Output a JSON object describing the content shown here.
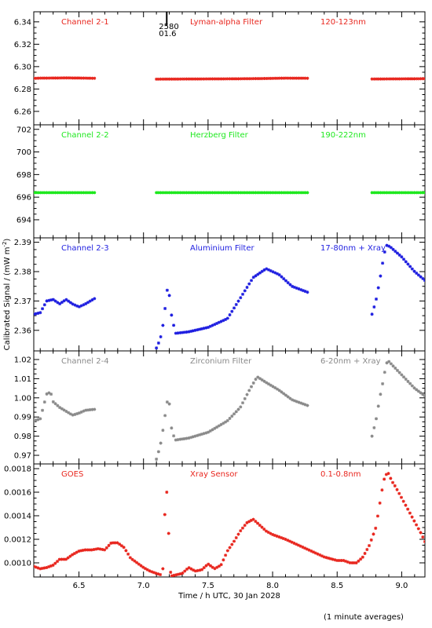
{
  "chart_data": {
    "type": "scatter",
    "xlabel": "Time / h UTC, 30 Jan 2028",
    "ylabel_main": "Calibrated Signal / (mW m",
    "ylabel_sup": "-2",
    "ylabel_end": ")",
    "xlim": [
      6.15,
      9.18
    ],
    "xticks": [
      6.5,
      7.0,
      7.5,
      8.0,
      8.5,
      9.0
    ],
    "xtick_labels": [
      "6.5",
      "7.0",
      "7.5",
      "8.0",
      "8.5",
      "9.0"
    ],
    "footnote": "(1 minute averages)",
    "annotation": {
      "x": 7.18,
      "lines": [
        "2580",
        "01.6"
      ]
    },
    "panels": [
      {
        "channel": "Channel 2-1",
        "filter": "Lyman-alpha Filter",
        "band": "120-123nm",
        "color": "#e8261e",
        "ylim": [
          6.248,
          6.349
        ],
        "yticks": [
          6.26,
          6.28,
          6.3,
          6.32,
          6.34
        ],
        "ytick_labels": [
          "6.26",
          "6.28",
          "6.30",
          "6.32",
          "6.34"
        ],
        "segments": [
          {
            "t": [
              6.15,
              6.2,
              6.3,
              6.4,
              6.5,
              6.6,
              6.62
            ],
            "v": [
              6.2895,
              6.2897,
              6.2898,
              6.2899,
              6.2898,
              6.2896,
              6.2896
            ]
          },
          {
            "t": [
              7.1,
              7.3,
              7.5,
              7.7,
              7.9,
              8.1,
              8.27
            ],
            "v": [
              6.2888,
              6.2889,
              6.289,
              6.2891,
              6.2893,
              6.2897,
              6.2896
            ]
          },
          {
            "t": [
              8.77,
              8.9,
              9.05,
              9.18
            ],
            "v": [
              6.2889,
              6.289,
              6.2891,
              6.2892
            ]
          }
        ]
      },
      {
        "channel": "Channel 2-2",
        "filter": "Herzberg Filter",
        "band": "190-222nm",
        "color": "#1ee81e",
        "ylim": [
          692.4,
          702.4
        ],
        "yticks": [
          694,
          696,
          698,
          700,
          702
        ],
        "ytick_labels": [
          "694",
          "696",
          "698",
          "700",
          "702"
        ],
        "segments": [
          {
            "t": [
              6.15,
              6.4,
              6.62
            ],
            "v": [
              696.4,
              696.4,
              696.4
            ]
          },
          {
            "t": [
              7.1,
              7.7,
              8.27
            ],
            "v": [
              696.4,
              696.4,
              696.4
            ]
          },
          {
            "t": [
              8.77,
              9.0,
              9.18
            ],
            "v": [
              696.4,
              696.4,
              696.4
            ]
          }
        ]
      },
      {
        "channel": "Channel 2-3",
        "filter": "Aluminium Filter",
        "band": "17-80nm + Xray",
        "color": "#1e1ee0",
        "ylim": [
          2.353,
          2.3915
        ],
        "yticks": [
          2.36,
          2.37,
          2.38,
          2.39
        ],
        "ytick_labels": [
          "2.36",
          "2.37",
          "2.38",
          "2.39"
        ],
        "segments": [
          {
            "t": [
              6.15,
              6.2,
              6.25,
              6.3,
              6.35,
              6.4,
              6.45,
              6.5,
              6.55,
              6.62
            ],
            "v": [
              2.3655,
              2.366,
              2.37,
              2.3705,
              2.369,
              2.3705,
              2.369,
              2.368,
              2.369,
              2.3708
            ]
          },
          {
            "t": [
              7.1,
              7.13,
              7.16,
              7.18,
              7.2,
              7.22,
              7.25,
              7.35,
              7.5,
              7.65,
              7.75,
              7.85,
              7.95,
              8.05,
              8.15,
              8.27
            ],
            "v": [
              2.354,
              2.357,
              2.364,
              2.374,
              2.372,
              2.364,
              2.359,
              2.3595,
              2.361,
              2.364,
              2.371,
              2.378,
              2.381,
              2.379,
              2.375,
              2.373
            ]
          },
          {
            "t": [
              8.77,
              8.8,
              8.83,
              8.86,
              8.88,
              8.91,
              9.0,
              9.1,
              9.18
            ],
            "v": [
              2.3655,
              2.37,
              2.377,
              2.385,
              2.389,
              2.3885,
              2.385,
              2.38,
              2.377
            ]
          }
        ]
      },
      {
        "channel": "Channel 2-4",
        "filter": "Zirconium Filter",
        "band": "6-20nm + Xray",
        "color": "#8a8a8a",
        "ylim": [
          0.9655,
          1.0245
        ],
        "yticks": [
          0.97,
          0.98,
          0.99,
          1.0,
          1.01,
          1.02
        ],
        "ytick_labels": [
          "0.97",
          "0.98",
          "0.99",
          "1.00",
          "1.01",
          "1.02"
        ],
        "segments": [
          {
            "t": [
              6.15,
              6.2,
              6.25,
              6.28,
              6.3,
              6.35,
              6.4,
              6.45,
              6.5,
              6.55,
              6.62
            ],
            "v": [
              0.988,
              0.989,
              1.002,
              1.003,
              0.998,
              0.995,
              0.993,
              0.991,
              0.992,
              0.9935,
              0.994
            ]
          },
          {
            "t": [
              7.1,
              7.13,
              7.16,
              7.18,
              7.2,
              7.22,
              7.25,
              7.35,
              7.5,
              7.65,
              7.75,
              7.82,
              7.88,
              7.95,
              8.05,
              8.15,
              8.27
            ],
            "v": [
              0.968,
              0.975,
              0.987,
              0.998,
              0.997,
              0.982,
              0.978,
              0.979,
              0.982,
              0.988,
              0.995,
              1.004,
              1.011,
              1.008,
              1.004,
              0.999,
              0.996
            ]
          },
          {
            "t": [
              8.77,
              8.8,
              8.83,
              8.86,
              8.88,
              8.9,
              9.0,
              9.1,
              9.18
            ],
            "v": [
              0.98,
              0.988,
              1.0,
              1.01,
              1.018,
              1.019,
              1.012,
              1.005,
              1.001
            ]
          }
        ]
      },
      {
        "channel": "GOES",
        "filter": "Xray Sensor",
        "band": "0.1-0.8nm",
        "color": "#e8261e",
        "ylim": [
          0.00088,
          0.00184
        ],
        "yticks": [
          0.001,
          0.0012,
          0.0014,
          0.0016,
          0.0018
        ],
        "ytick_labels": [
          "0.0010",
          "0.0012",
          "0.0014",
          "0.0016",
          "0.0018"
        ],
        "segments": [
          {
            "t": [
              6.15,
              6.2,
              6.25,
              6.3,
              6.35,
              6.4,
              6.45,
              6.5,
              6.55,
              6.6,
              6.65,
              6.7,
              6.75,
              6.8,
              6.85,
              6.9,
              6.95,
              7.0,
              7.05,
              7.1,
              7.13
            ],
            "v": [
              0.00097,
              0.00095,
              0.00096,
              0.00098,
              0.00103,
              0.00103,
              0.00107,
              0.0011,
              0.00111,
              0.00111,
              0.00112,
              0.00111,
              0.00117,
              0.00117,
              0.00113,
              0.00104,
              0.001,
              0.00096,
              0.00093,
              0.00091,
              0.0009
            ]
          },
          {
            "t": [
              7.15,
              7.16,
              7.17,
              7.18,
              7.19,
              7.2,
              7.21
            ],
            "v": [
              0.00095,
              0.0014,
              0.00142,
              0.0016,
              0.00145,
              0.00105,
              0.00092
            ]
          },
          {
            "t": [
              7.22,
              7.3,
              7.35,
              7.4,
              7.45,
              7.5,
              7.55,
              7.6,
              7.65,
              7.7,
              7.75,
              7.8,
              7.85,
              7.9,
              7.95,
              8.0,
              8.05,
              8.1,
              8.2,
              8.3,
              8.4,
              8.5,
              8.55,
              8.6,
              8.65,
              8.7,
              8.75,
              8.8,
              8.83,
              8.86,
              8.88,
              8.9,
              8.92,
              8.95,
              9.0,
              9.05,
              9.1,
              9.15,
              9.18
            ],
            "v": [
              0.00089,
              0.00091,
              0.00096,
              0.00093,
              0.00094,
              0.00099,
              0.00095,
              0.00098,
              0.0011,
              0.00118,
              0.00127,
              0.00134,
              0.00137,
              0.00132,
              0.00127,
              0.00124,
              0.00122,
              0.0012,
              0.00115,
              0.0011,
              0.00105,
              0.00102,
              0.00102,
              0.001,
              0.001,
              0.00105,
              0.00115,
              0.0013,
              0.0015,
              0.0017,
              0.00175,
              0.00176,
              0.0017,
              0.00165,
              0.00155,
              0.00145,
              0.00135,
              0.00125,
              0.00118
            ]
          }
        ]
      }
    ]
  }
}
